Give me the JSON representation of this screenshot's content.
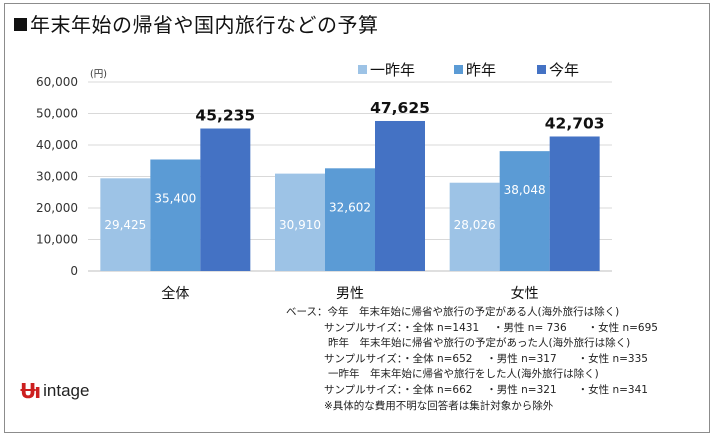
{
  "title": "年末年始の帰省や国内旅行などの予算",
  "chart_data": {
    "type": "bar",
    "unit_label": "(円)",
    "categories": [
      "全体",
      "男性",
      "女性"
    ],
    "ylim": [
      0,
      60000
    ],
    "yticks": [
      "0",
      "10,000",
      "20,000",
      "30,000",
      "40,000",
      "50,000",
      "60,000"
    ],
    "ytick_values": [
      0,
      10000,
      20000,
      30000,
      40000,
      50000,
      60000
    ],
    "legend_position": "top-right",
    "series": [
      {
        "name": "一昨年",
        "color": "#9dc3e6",
        "values": [
          29425,
          30910,
          28026
        ],
        "labels": [
          "29,425",
          "30,910",
          "28,026"
        ]
      },
      {
        "name": "昨年",
        "color": "#5b9bd5",
        "values": [
          35400,
          32602,
          38048
        ],
        "labels": [
          "35,400",
          "32,602",
          "38,048"
        ]
      },
      {
        "name": "今年",
        "color": "#4472c4",
        "values": [
          45235,
          47625,
          42703
        ],
        "labels": [
          "45,235",
          "47,625",
          "42,703"
        ]
      }
    ]
  },
  "notes": [
    "ベース：今年　年末年始に帰省や旅行の予定がある人(海外旅行は除く)",
    "サンプルサイズ：・全体 n=1431　 ・男性 n= 736　　・女性 n=695",
    "昨年　年末年始に帰省や旅行の予定があった人(海外旅行は除く)",
    "サンプルサイズ：・全体 n=652　 ・男性 n=317　　・女性 n=335",
    "一昨年　年末年始に帰省や旅行をした人(海外旅行は除く)",
    "サンプルサイズ：・全体 n=662　 ・男性 n=321　　・女性 n=341",
    "※具体的な費用不明な回答者は集計対象から除外"
  ],
  "logo": {
    "word": "intage",
    "mark": "ꟾǂ"
  }
}
